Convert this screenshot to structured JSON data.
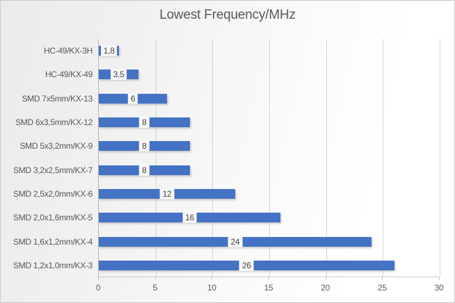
{
  "chart_data": {
    "type": "bar",
    "orientation": "horizontal",
    "title": "Lowest Frequency/MHz",
    "categories": [
      "HC-49/KX-3H",
      "HC-49/KX-49",
      "SMD 7x5mm/KX-13",
      "SMD 6x3,5mm/KX-12",
      "SMD 5x3,2mm/KX-9",
      "SMD 3,2x2,5mm/KX-7",
      "SMD 2,5x2,0mm/KX-6",
      "SMD 2,0x1,6mm/KX-5",
      "SMD 1,6x1,2mm/KX-4",
      "SMD 1,2x1,0mm/KX-3"
    ],
    "values": [
      1.8,
      3.5,
      6,
      8,
      8,
      8,
      12,
      16,
      24,
      26
    ],
    "value_labels": [
      "1,8",
      "3,5",
      "6",
      "8",
      "8",
      "8",
      "12",
      "16",
      "24",
      "26"
    ],
    "xlabel": "",
    "ylabel": "",
    "xlim": [
      0,
      30
    ],
    "xticks": [
      0,
      5,
      10,
      15,
      20,
      25,
      30
    ],
    "xtick_labels": [
      "0",
      "5",
      "10",
      "15",
      "20",
      "25",
      "30"
    ],
    "grid": true,
    "legend_position": "none",
    "data_label_position": "center",
    "colors": {
      "bar": "#4472c4",
      "gridline": "#d6d6d6",
      "axis_line": "#b7b7b7",
      "text": "#595959",
      "title": "#595959",
      "data_label_background": "#f7f7f7",
      "data_label_text": "#474747",
      "chart_border": "#c9c9c9"
    }
  }
}
